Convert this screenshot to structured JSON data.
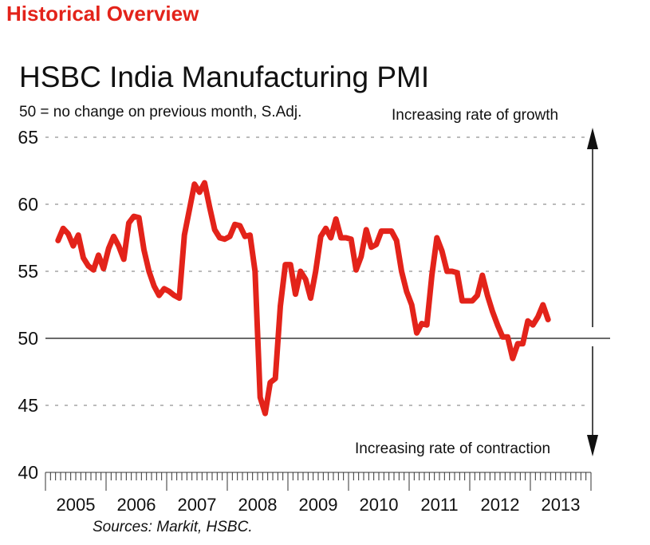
{
  "header": {
    "text": "Historical Overview"
  },
  "chart_data": {
    "type": "line",
    "title": "HSBC India Manufacturing PMI",
    "subtitle": "50 = no change on previous month, S.Adj.",
    "annotations": {
      "growth": "Increasing rate of growth",
      "contraction": "Increasing rate of contraction"
    },
    "source": "Sources: Markit, HSBC.",
    "ylim": [
      40,
      65
    ],
    "yticks": [
      40,
      45,
      50,
      55,
      60,
      65
    ],
    "grid": "dashed horizontal",
    "reference_line": 50,
    "xlabels": [
      "2005",
      "2006",
      "2007",
      "2008",
      "2009",
      "2010",
      "2011",
      "2012",
      "2013"
    ],
    "start": "2005-03",
    "series": [
      {
        "color": "#e3231a",
        "values": [
          57.3,
          58.2,
          57.8,
          56.9,
          57.7,
          56.0,
          55.4,
          55.1,
          56.2,
          55.2,
          56.7,
          57.6,
          56.9,
          55.9,
          58.6,
          59.1,
          59.0,
          56.6,
          55.0,
          53.9,
          53.2,
          53.7,
          53.5,
          53.2,
          53.0,
          57.7,
          59.6,
          61.5,
          60.9,
          61.6,
          59.8,
          58.1,
          57.5,
          57.4,
          57.6,
          58.5,
          58.4,
          57.6,
          57.7,
          55.0,
          45.6,
          44.4,
          46.7,
          47.0,
          52.4,
          55.5,
          55.5,
          53.3,
          55.0,
          54.4,
          53.0,
          55.0,
          57.6,
          58.2,
          57.5,
          58.9,
          57.5,
          57.5,
          57.4,
          55.1,
          56.1,
          58.1,
          56.8,
          57.0,
          58.0,
          58.0,
          58.0,
          57.3,
          55.0,
          53.5,
          52.5,
          50.4,
          51.1,
          51.0,
          54.7,
          57.5,
          56.5,
          55.0,
          55.0,
          54.9,
          52.8,
          52.8,
          52.8,
          53.2,
          54.7,
          53.2,
          52.0,
          51.0,
          50.1,
          50.1,
          48.5,
          49.6,
          49.6,
          51.3,
          51.0,
          51.6,
          52.5,
          51.4
        ]
      }
    ]
  }
}
